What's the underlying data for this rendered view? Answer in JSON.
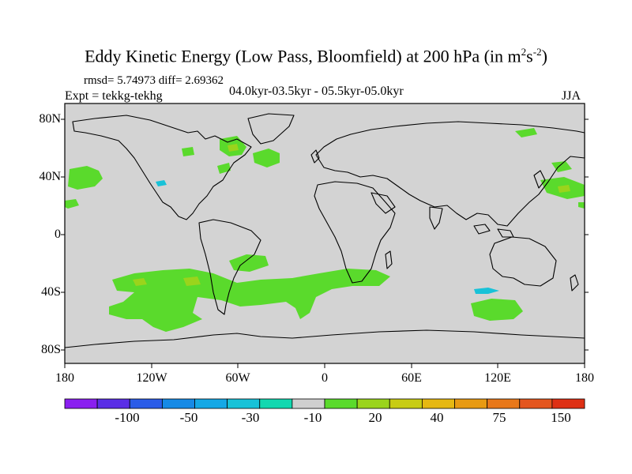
{
  "title": {
    "main": "Eddy Kinetic Energy (Low Pass, Bloomfield) at 200 hPa (in m",
    "sup1": "2",
    "mid": "s",
    "sup2": "-2",
    "end": ")"
  },
  "stats_line": "rmsd= 5.74973 diff= 2.69362",
  "experiment": "Expt = tekkg-tekhg",
  "period": "04.0kyr-03.5kyr - 05.5kyr-05.0kyr",
  "season": "JJA",
  "lat_labels": [
    "80N",
    "40N",
    "0",
    "40S",
    "80S"
  ],
  "lon_labels": [
    "180",
    "120W",
    "60W",
    "0",
    "60E",
    "120E",
    "180"
  ],
  "colorbar": {
    "labels": [
      "-100",
      "-50",
      "-30",
      "-10",
      "20",
      "40",
      "75",
      "150"
    ],
    "colors": [
      "#8a1ff0",
      "#5a2ee6",
      "#2b5ce8",
      "#168ae6",
      "#14a8e6",
      "#18c2d8",
      "#12d8b0",
      "#cfcfcf",
      "#5ada2c",
      "#9ad41c",
      "#c8cc14",
      "#e6b812",
      "#e89a12",
      "#e8781a",
      "#e4561e",
      "#de3014"
    ]
  },
  "colors": {
    "land_bg": "#d3d3d3",
    "positive_small": "#5ada2c",
    "positive_mid": "#9ad41c",
    "negative_small": "#18c2d8"
  }
}
